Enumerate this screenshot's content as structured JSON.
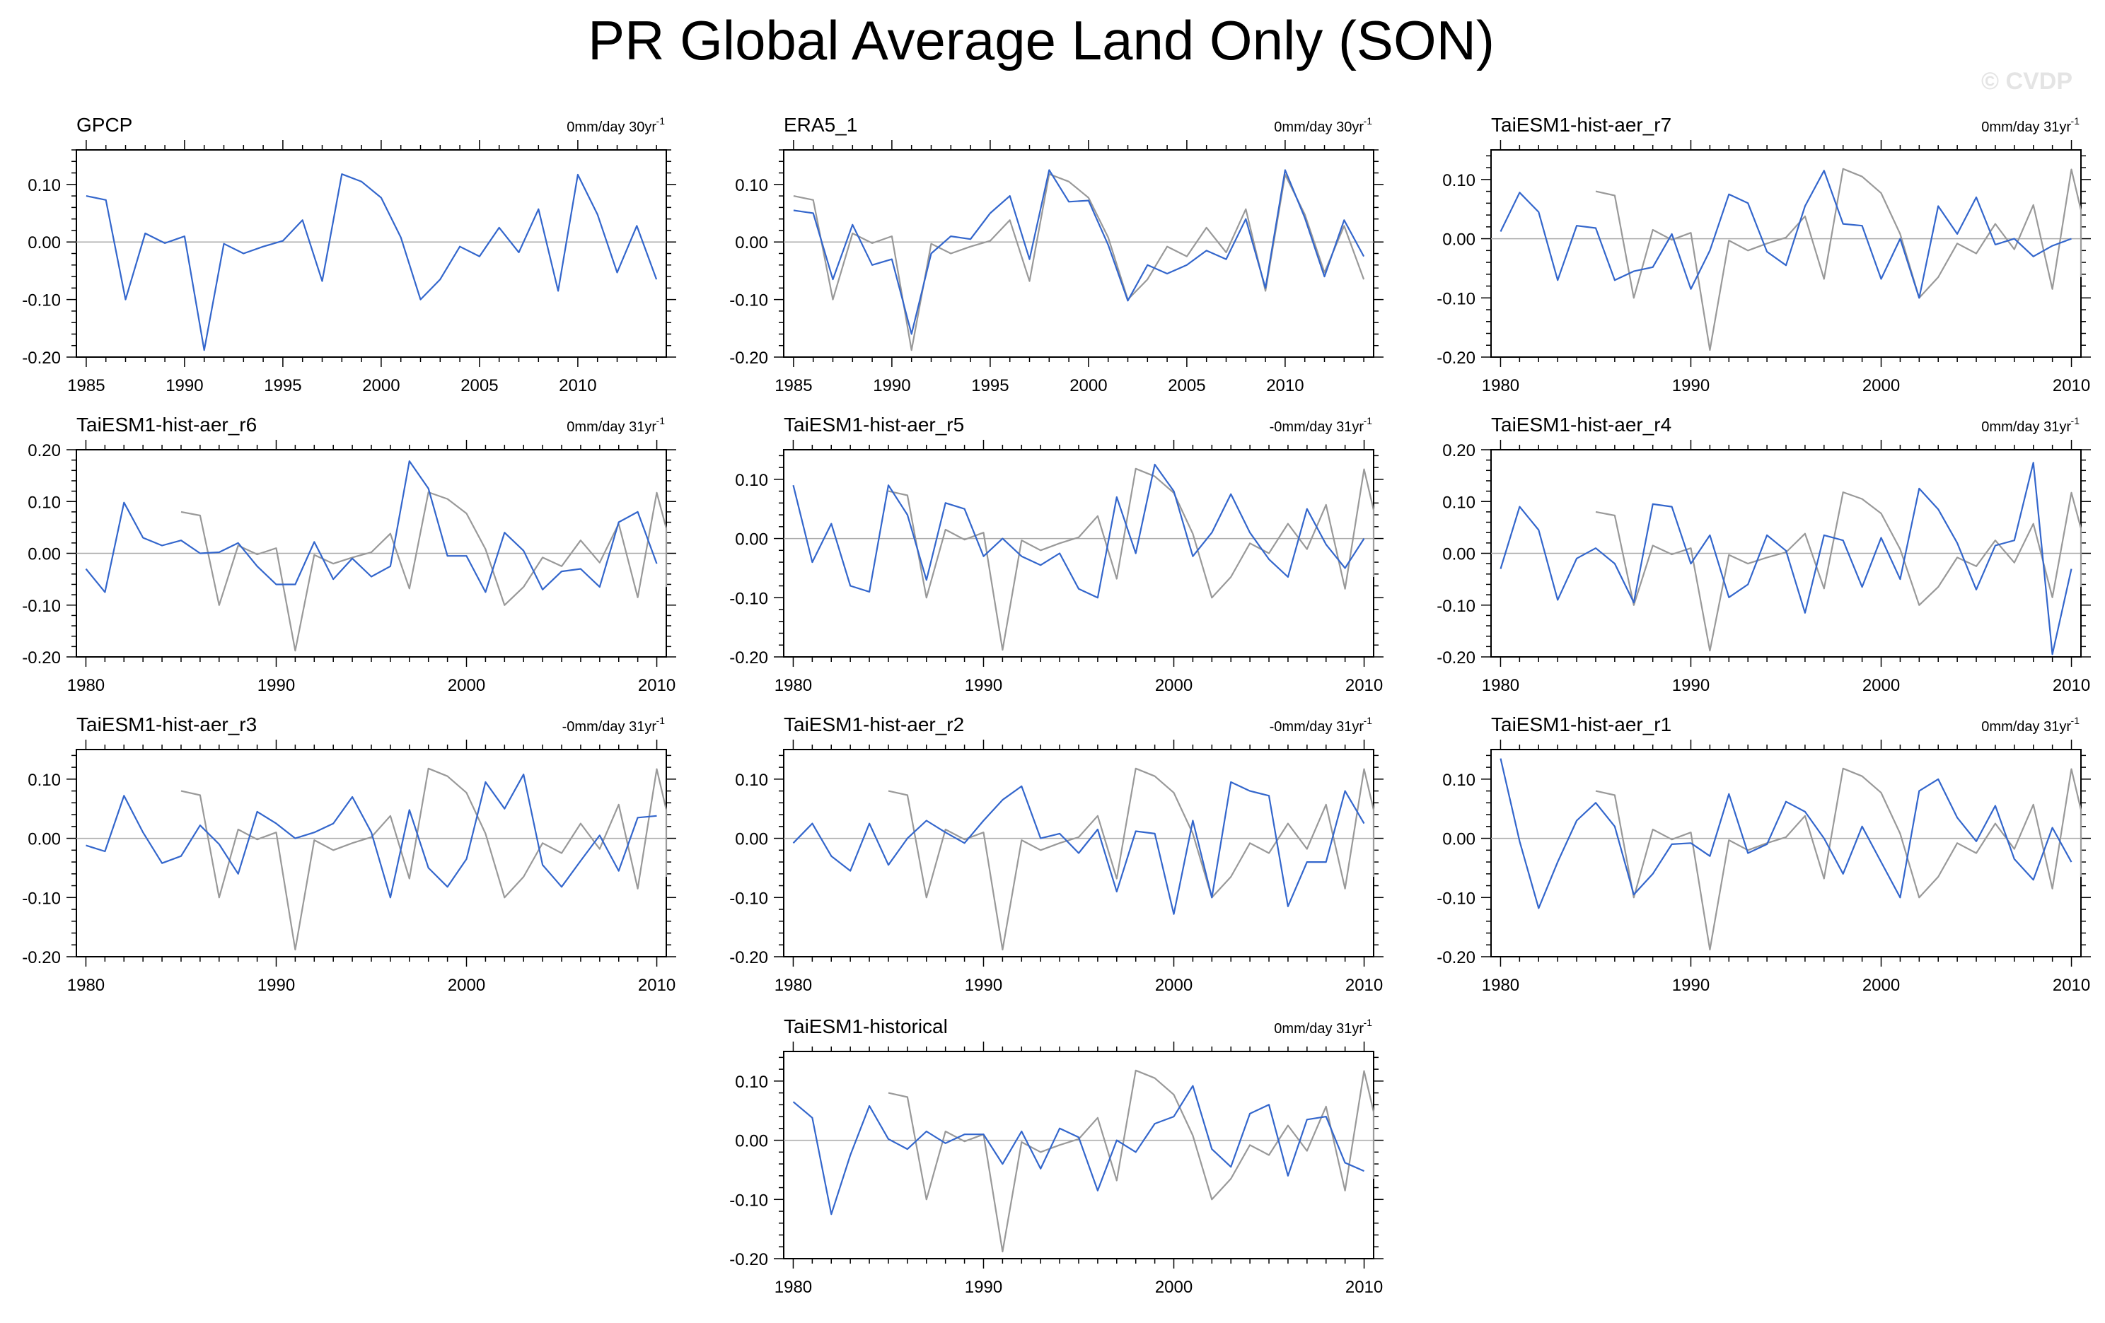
{
  "figure": {
    "title": "PR Global Average Land Only (SON)",
    "watermark": "© CVDP"
  },
  "colors": {
    "model": "#3366cc",
    "obs": "#999999",
    "axis": "#000000",
    "zero": "#aaaaaa"
  },
  "chart_data": [
    {
      "type": "line",
      "title": "GPCP",
      "trend": "0mm/day 30yr",
      "xlim": [
        1984.5,
        2014.5
      ],
      "ylim": [
        -0.2,
        0.16
      ],
      "xticks": [
        1985,
        1990,
        1995,
        2000,
        2005,
        2010
      ],
      "yticks": [
        0.1,
        0.0,
        -0.1,
        -0.2
      ],
      "series": [
        {
          "name": "GPCP",
          "role": "model",
          "start": 1985,
          "values": [
            0.08,
            0.073,
            -0.1,
            0.015,
            -0.002,
            0.01,
            -0.188,
            -0.003,
            -0.02,
            -0.008,
            0.002,
            0.038,
            -0.068,
            0.118,
            0.105,
            0.077,
            0.008,
            -0.1,
            -0.065,
            -0.008,
            -0.025,
            0.025,
            -0.018,
            0.057,
            -0.085,
            0.117,
            0.048,
            -0.053,
            0.028,
            -0.065
          ]
        }
      ]
    },
    {
      "type": "line",
      "title": "ERA5_1",
      "trend": "0mm/day 30yr",
      "xlim": [
        1984.5,
        2014.5
      ],
      "ylim": [
        -0.2,
        0.16
      ],
      "xticks": [
        1985,
        1990,
        1995,
        2000,
        2005,
        2010
      ],
      "yticks": [
        0.1,
        0.0,
        -0.1,
        -0.2
      ],
      "series": [
        {
          "name": "GPCP",
          "role": "obs",
          "start": 1985,
          "values": [
            0.08,
            0.073,
            -0.1,
            0.015,
            -0.002,
            0.01,
            -0.188,
            -0.003,
            -0.02,
            -0.008,
            0.002,
            0.038,
            -0.068,
            0.118,
            0.105,
            0.077,
            0.008,
            -0.1,
            -0.065,
            -0.008,
            -0.025,
            0.025,
            -0.018,
            0.057,
            -0.085,
            0.117,
            0.048,
            -0.053,
            0.028,
            -0.065
          ]
        },
        {
          "name": "ERA5_1",
          "role": "model",
          "start": 1985,
          "values": [
            0.055,
            0.05,
            -0.065,
            0.03,
            -0.04,
            -0.03,
            -0.16,
            -0.02,
            0.01,
            0.005,
            0.05,
            0.08,
            -0.03,
            0.125,
            0.07,
            0.072,
            -0.005,
            -0.102,
            -0.04,
            -0.055,
            -0.04,
            -0.015,
            -0.03,
            0.04,
            -0.08,
            0.125,
            0.042,
            -0.06,
            0.038,
            -0.025
          ]
        }
      ]
    },
    {
      "type": "line",
      "title": "TaiESM1-hist-aer_r7",
      "trend": "0mm/day 31yr",
      "xlim": [
        1979.5,
        2010.5
      ],
      "ylim": [
        -0.2,
        0.15
      ],
      "xticks": [
        1980,
        1990,
        2000,
        2010
      ],
      "yticks": [
        0.1,
        0.0,
        -0.1,
        -0.2
      ],
      "series": [
        {
          "name": "GPCP",
          "role": "obs",
          "start": 1985,
          "values": [
            0.08,
            0.073,
            -0.1,
            0.015,
            -0.002,
            0.01,
            -0.188,
            -0.003,
            -0.02,
            -0.008,
            0.002,
            0.038,
            -0.068,
            0.118,
            0.105,
            0.077,
            0.008,
            -0.1,
            -0.065,
            -0.008,
            -0.025,
            0.025,
            -0.018,
            0.057,
            -0.085,
            0.117,
            0.048,
            -0.053,
            0.028,
            -0.065
          ]
        },
        {
          "name": "TaiESM1-hist-aer_r7",
          "role": "model",
          "start": 1980,
          "values": [
            0.012,
            0.078,
            0.045,
            -0.07,
            0.022,
            0.018,
            -0.07,
            -0.055,
            -0.048,
            0.008,
            -0.085,
            -0.02,
            0.075,
            0.06,
            -0.022,
            -0.045,
            0.055,
            0.115,
            0.025,
            0.022,
            -0.068,
            0.0,
            -0.1,
            0.055,
            0.008,
            0.07,
            -0.01,
            0.0,
            -0.03,
            -0.012,
            0.0
          ]
        }
      ]
    },
    {
      "type": "line",
      "title": "TaiESM1-hist-aer_r6",
      "trend": "0mm/day 31yr",
      "xlim": [
        1979.5,
        2010.5
      ],
      "ylim": [
        -0.2,
        0.2
      ],
      "xticks": [
        1980,
        1990,
        2000,
        2010
      ],
      "yticks": [
        0.2,
        0.1,
        0.0,
        -0.1,
        -0.2
      ],
      "series": [
        {
          "name": "GPCP",
          "role": "obs",
          "start": 1985,
          "values": [
            0.08,
            0.073,
            -0.1,
            0.015,
            -0.002,
            0.01,
            -0.188,
            -0.003,
            -0.02,
            -0.008,
            0.002,
            0.038,
            -0.068,
            0.118,
            0.105,
            0.077,
            0.008,
            -0.1,
            -0.065,
            -0.008,
            -0.025,
            0.025,
            -0.018,
            0.057,
            -0.085,
            0.117,
            0.048,
            -0.053,
            0.028,
            -0.065
          ]
        },
        {
          "name": "TaiESM1-hist-aer_r6",
          "role": "model",
          "start": 1980,
          "values": [
            -0.03,
            -0.075,
            0.098,
            0.03,
            0.015,
            0.025,
            0.0,
            0.002,
            0.02,
            -0.025,
            -0.06,
            -0.06,
            0.022,
            -0.05,
            -0.01,
            -0.045,
            -0.025,
            0.178,
            0.125,
            -0.005,
            -0.005,
            -0.075,
            0.04,
            0.005,
            -0.07,
            -0.035,
            -0.03,
            -0.065,
            0.06,
            0.08,
            -0.02
          ]
        }
      ]
    },
    {
      "type": "line",
      "title": "TaiESM1-hist-aer_r5",
      "trend": "-0mm/day 31yr",
      "xlim": [
        1979.5,
        2010.5
      ],
      "ylim": [
        -0.2,
        0.15
      ],
      "xticks": [
        1980,
        1990,
        2000,
        2010
      ],
      "yticks": [
        0.1,
        0.0,
        -0.1,
        -0.2
      ],
      "series": [
        {
          "name": "GPCP",
          "role": "obs",
          "start": 1985,
          "values": [
            0.08,
            0.073,
            -0.1,
            0.015,
            -0.002,
            0.01,
            -0.188,
            -0.003,
            -0.02,
            -0.008,
            0.002,
            0.038,
            -0.068,
            0.118,
            0.105,
            0.077,
            0.008,
            -0.1,
            -0.065,
            -0.008,
            -0.025,
            0.025,
            -0.018,
            0.057,
            -0.085,
            0.117,
            0.048,
            -0.053,
            0.028,
            -0.065
          ]
        },
        {
          "name": "TaiESM1-hist-aer_r5",
          "role": "model",
          "start": 1980,
          "values": [
            0.09,
            -0.04,
            0.025,
            -0.08,
            -0.09,
            0.09,
            0.04,
            -0.07,
            0.06,
            0.05,
            -0.03,
            0.0,
            -0.03,
            -0.045,
            -0.025,
            -0.085,
            -0.1,
            0.07,
            -0.025,
            0.125,
            0.08,
            -0.03,
            0.01,
            0.075,
            0.01,
            -0.035,
            -0.065,
            0.05,
            -0.01,
            -0.05,
            0.0
          ]
        }
      ]
    },
    {
      "type": "line",
      "title": "TaiESM1-hist-aer_r4",
      "trend": "0mm/day 31yr",
      "xlim": [
        1979.5,
        2010.5
      ],
      "ylim": [
        -0.2,
        0.2
      ],
      "xticks": [
        1980,
        1990,
        2000,
        2010
      ],
      "yticks": [
        0.2,
        0.1,
        0.0,
        -0.1,
        -0.2
      ],
      "series": [
        {
          "name": "GPCP",
          "role": "obs",
          "start": 1985,
          "values": [
            0.08,
            0.073,
            -0.1,
            0.015,
            -0.002,
            0.01,
            -0.188,
            -0.003,
            -0.02,
            -0.008,
            0.002,
            0.038,
            -0.068,
            0.118,
            0.105,
            0.077,
            0.008,
            -0.1,
            -0.065,
            -0.008,
            -0.025,
            0.025,
            -0.018,
            0.057,
            -0.085,
            0.117,
            0.048,
            -0.053,
            0.028,
            -0.065
          ]
        },
        {
          "name": "TaiESM1-hist-aer_r4",
          "role": "model",
          "start": 1980,
          "values": [
            -0.03,
            0.09,
            0.045,
            -0.09,
            -0.01,
            0.01,
            -0.02,
            -0.095,
            0.095,
            0.09,
            -0.02,
            0.035,
            -0.085,
            -0.06,
            0.035,
            0.005,
            -0.115,
            0.035,
            0.025,
            -0.065,
            0.03,
            -0.05,
            0.125,
            0.085,
            0.02,
            -0.07,
            0.015,
            0.025,
            0.175,
            -0.195,
            -0.03
          ]
        }
      ]
    },
    {
      "type": "line",
      "title": "TaiESM1-hist-aer_r3",
      "trend": "-0mm/day 31yr",
      "xlim": [
        1979.5,
        2010.5
      ],
      "ylim": [
        -0.2,
        0.15
      ],
      "xticks": [
        1980,
        1990,
        2000,
        2010
      ],
      "yticks": [
        0.1,
        0.0,
        -0.1,
        -0.2
      ],
      "series": [
        {
          "name": "GPCP",
          "role": "obs",
          "start": 1985,
          "values": [
            0.08,
            0.073,
            -0.1,
            0.015,
            -0.002,
            0.01,
            -0.188,
            -0.003,
            -0.02,
            -0.008,
            0.002,
            0.038,
            -0.068,
            0.118,
            0.105,
            0.077,
            0.008,
            -0.1,
            -0.065,
            -0.008,
            -0.025,
            0.025,
            -0.018,
            0.057,
            -0.085,
            0.117,
            0.048,
            -0.053,
            0.028,
            -0.065
          ]
        },
        {
          "name": "TaiESM1-hist-aer_r3",
          "role": "model",
          "start": 1980,
          "values": [
            -0.012,
            -0.022,
            0.072,
            0.01,
            -0.042,
            -0.03,
            0.022,
            -0.01,
            -0.06,
            0.045,
            0.025,
            0.0,
            0.01,
            0.025,
            0.07,
            0.01,
            -0.1,
            0.048,
            -0.05,
            -0.082,
            -0.035,
            0.095,
            0.05,
            0.108,
            -0.045,
            -0.082,
            -0.038,
            0.005,
            -0.055,
            0.035,
            0.038
          ]
        }
      ]
    },
    {
      "type": "line",
      "title": "TaiESM1-hist-aer_r2",
      "trend": "-0mm/day 31yr",
      "xlim": [
        1979.5,
        2010.5
      ],
      "ylim": [
        -0.2,
        0.15
      ],
      "xticks": [
        1980,
        1990,
        2000,
        2010
      ],
      "yticks": [
        0.1,
        0.0,
        -0.1,
        -0.2
      ],
      "series": [
        {
          "name": "GPCP",
          "role": "obs",
          "start": 1985,
          "values": [
            0.08,
            0.073,
            -0.1,
            0.015,
            -0.002,
            0.01,
            -0.188,
            -0.003,
            -0.02,
            -0.008,
            0.002,
            0.038,
            -0.068,
            0.118,
            0.105,
            0.077,
            0.008,
            -0.1,
            -0.065,
            -0.008,
            -0.025,
            0.025,
            -0.018,
            0.057,
            -0.085,
            0.117,
            0.048,
            -0.053,
            0.028,
            -0.065
          ]
        },
        {
          "name": "TaiESM1-hist-aer_r2",
          "role": "model",
          "start": 1980,
          "values": [
            -0.008,
            0.025,
            -0.03,
            -0.055,
            0.025,
            -0.045,
            0.0,
            0.03,
            0.01,
            -0.008,
            0.03,
            0.065,
            0.088,
            0.0,
            0.008,
            -0.025,
            0.015,
            -0.09,
            0.012,
            0.008,
            -0.128,
            0.03,
            -0.1,
            0.095,
            0.08,
            0.072,
            -0.115,
            -0.04,
            -0.04,
            0.08,
            0.025
          ]
        }
      ]
    },
    {
      "type": "line",
      "title": "TaiESM1-hist-aer_r1",
      "trend": "0mm/day 31yr",
      "xlim": [
        1979.5,
        2010.5
      ],
      "ylim": [
        -0.2,
        0.15
      ],
      "xticks": [
        1980,
        1990,
        2000,
        2010
      ],
      "yticks": [
        0.1,
        0.0,
        -0.1,
        -0.2
      ],
      "series": [
        {
          "name": "GPCP",
          "role": "obs",
          "start": 1985,
          "values": [
            0.08,
            0.073,
            -0.1,
            0.015,
            -0.002,
            0.01,
            -0.188,
            -0.003,
            -0.02,
            -0.008,
            0.002,
            0.038,
            -0.068,
            0.118,
            0.105,
            0.077,
            0.008,
            -0.1,
            -0.065,
            -0.008,
            -0.025,
            0.025,
            -0.018,
            0.057,
            -0.085,
            0.117,
            0.048,
            -0.053,
            0.028,
            -0.065
          ]
        },
        {
          "name": "TaiESM1-hist-aer_r1",
          "role": "model",
          "start": 1980,
          "values": [
            0.135,
            -0.005,
            -0.118,
            -0.04,
            0.03,
            0.06,
            0.02,
            -0.095,
            -0.06,
            -0.01,
            -0.008,
            -0.03,
            0.075,
            -0.025,
            -0.01,
            0.062,
            0.045,
            0.0,
            -0.06,
            0.02,
            -0.04,
            -0.1,
            0.08,
            0.1,
            0.035,
            -0.005,
            0.055,
            -0.035,
            -0.07,
            0.018,
            -0.04
          ]
        }
      ]
    },
    {
      "type": "line",
      "title": "TaiESM1-historical",
      "trend": "0mm/day 31yr",
      "xlim": [
        1979.5,
        2010.5
      ],
      "ylim": [
        -0.2,
        0.15
      ],
      "xticks": [
        1980,
        1990,
        2000,
        2010
      ],
      "yticks": [
        0.1,
        0.0,
        -0.1,
        -0.2
      ],
      "series": [
        {
          "name": "GPCP",
          "role": "obs",
          "start": 1985,
          "values": [
            0.08,
            0.073,
            -0.1,
            0.015,
            -0.002,
            0.01,
            -0.188,
            -0.003,
            -0.02,
            -0.008,
            0.002,
            0.038,
            -0.068,
            0.118,
            0.105,
            0.077,
            0.008,
            -0.1,
            -0.065,
            -0.008,
            -0.025,
            0.025,
            -0.018,
            0.057,
            -0.085,
            0.117,
            0.048,
            -0.053,
            0.028,
            -0.065
          ]
        },
        {
          "name": "TaiESM1-historical",
          "role": "model",
          "start": 1980,
          "values": [
            0.065,
            0.038,
            -0.125,
            -0.025,
            0.058,
            0.002,
            -0.015,
            0.015,
            -0.005,
            0.01,
            0.01,
            -0.04,
            0.015,
            -0.048,
            0.02,
            0.005,
            -0.085,
            0.0,
            -0.02,
            0.028,
            0.04,
            0.092,
            -0.015,
            -0.045,
            0.045,
            0.06,
            -0.06,
            0.035,
            0.04,
            -0.038,
            -0.052
          ]
        }
      ]
    }
  ]
}
